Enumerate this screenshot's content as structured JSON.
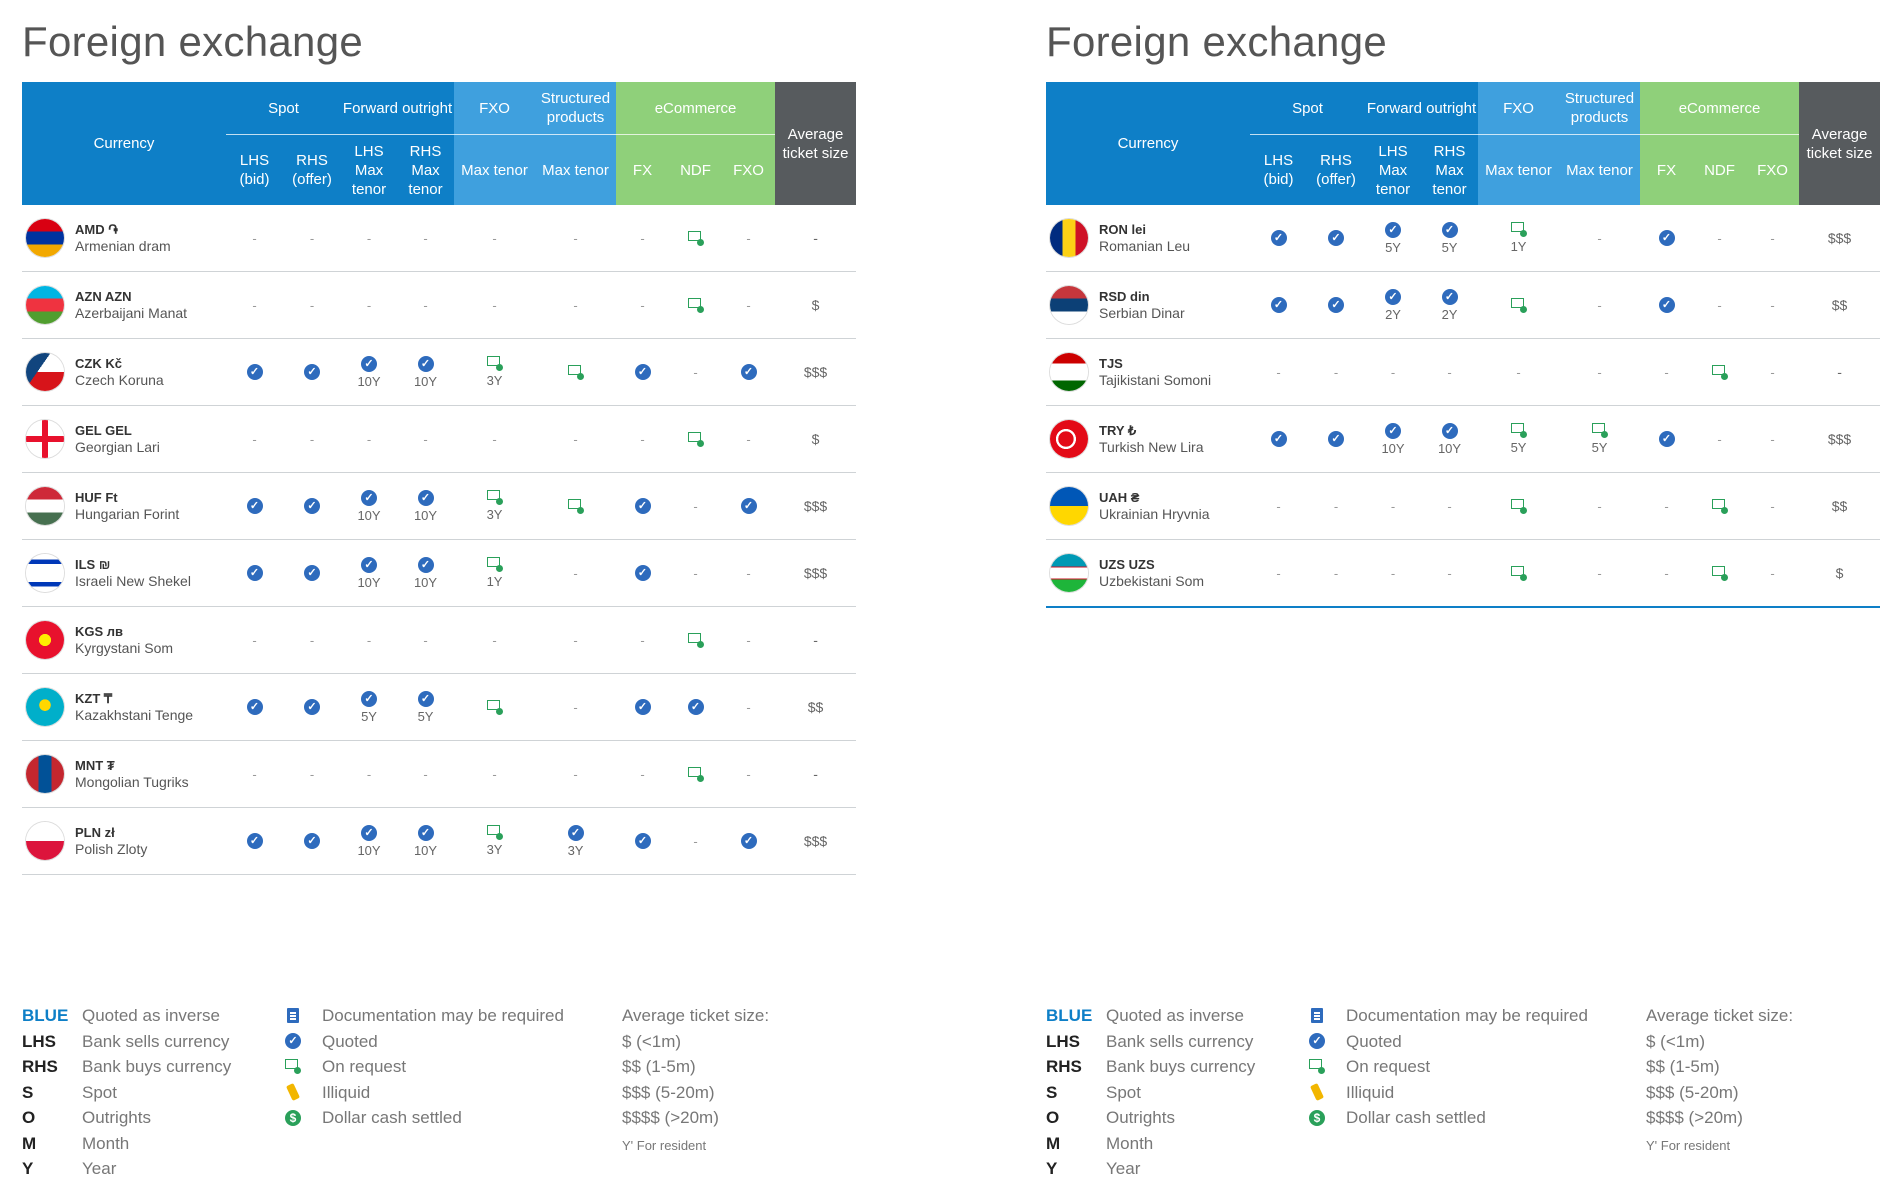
{
  "colors": {
    "brand_blue": "#0e7fc7",
    "fxo_blue": "#3fa0de",
    "ecommerce_green": "#8fd07a",
    "avg_grey": "#575b5e",
    "check_blue": "#2e6bbd",
    "request_green": "#2aa05a"
  },
  "header": {
    "currency": "Currency",
    "spot": "Spot",
    "forward_outright": "Forward outright",
    "fxo": "FXO",
    "structured_products": "Structured products",
    "ecommerce": "eCommerce",
    "average_ticket_size": "Average ticket size",
    "lhs_bid": "LHS (bid)",
    "rhs_offer": "RHS (offer)",
    "lhs_max_tenor": "LHS Max tenor",
    "rhs_max_tenor": "RHS Max tenor",
    "max_tenor": "Max tenor",
    "fx": "FX",
    "ndf": "NDF",
    "fxo_sub": "FXO"
  },
  "icons": {
    "quoted": "check-circle-icon",
    "on_request": "screen-request-icon",
    "documentation": "document-icon",
    "illiquid": "illiquid-icon",
    "dollar_cash": "dollar-coin-icon"
  },
  "panels": [
    {
      "title": "Foreign exchange",
      "rows": [
        {
          "code": "AMD ֏",
          "name": "Armenian dram",
          "flag": "am",
          "cells": [
            [
              "d"
            ],
            [
              "d"
            ],
            [
              "d"
            ],
            [
              "d"
            ],
            [
              "d"
            ],
            [
              "d"
            ],
            [
              "d"
            ],
            [
              "r"
            ],
            [
              "d"
            ]
          ],
          "avg": "-"
        },
        {
          "code": "AZN AZN",
          "name": "Azerbaijani Manat",
          "flag": "az",
          "cells": [
            [
              "d"
            ],
            [
              "d"
            ],
            [
              "d"
            ],
            [
              "d"
            ],
            [
              "d"
            ],
            [
              "d"
            ],
            [
              "d"
            ],
            [
              "r"
            ],
            [
              "d"
            ]
          ],
          "avg": "$"
        },
        {
          "code": "CZK Kč",
          "name": "Czech Koruna",
          "flag": "cz",
          "cells": [
            [
              "c"
            ],
            [
              "c"
            ],
            [
              "c",
              "10Y"
            ],
            [
              "c",
              "10Y"
            ],
            [
              "r",
              "3Y"
            ],
            [
              "r"
            ],
            [
              "c"
            ],
            [
              "d"
            ],
            [
              "c"
            ]
          ],
          "avg": "$$$"
        },
        {
          "code": "GEL GEL",
          "name": "Georgian Lari",
          "flag": "ge",
          "cells": [
            [
              "d"
            ],
            [
              "d"
            ],
            [
              "d"
            ],
            [
              "d"
            ],
            [
              "d"
            ],
            [
              "d"
            ],
            [
              "d"
            ],
            [
              "r"
            ],
            [
              "d"
            ]
          ],
          "avg": "$"
        },
        {
          "code": "HUF Ft",
          "name": "Hungarian Forint",
          "flag": "hu",
          "cells": [
            [
              "c"
            ],
            [
              "c"
            ],
            [
              "c",
              "10Y"
            ],
            [
              "c",
              "10Y"
            ],
            [
              "r",
              "3Y"
            ],
            [
              "r"
            ],
            [
              "c"
            ],
            [
              "d"
            ],
            [
              "c"
            ]
          ],
          "avg": "$$$"
        },
        {
          "code": "ILS ₪",
          "name": "Israeli New Shekel",
          "flag": "il",
          "cells": [
            [
              "c"
            ],
            [
              "c"
            ],
            [
              "c",
              "10Y"
            ],
            [
              "c",
              "10Y"
            ],
            [
              "r",
              "1Y"
            ],
            [
              "d"
            ],
            [
              "c"
            ],
            [
              "d"
            ],
            [
              "d"
            ]
          ],
          "avg": "$$$"
        },
        {
          "code": "KGS лв",
          "name": "Kyrgystani Som",
          "flag": "kg",
          "cells": [
            [
              "d"
            ],
            [
              "d"
            ],
            [
              "d"
            ],
            [
              "d"
            ],
            [
              "d"
            ],
            [
              "d"
            ],
            [
              "d"
            ],
            [
              "r"
            ],
            [
              "d"
            ]
          ],
          "avg": "-"
        },
        {
          "code": "KZT ₸",
          "name": "Kazakhstani Tenge",
          "flag": "kz",
          "cells": [
            [
              "c"
            ],
            [
              "c"
            ],
            [
              "c",
              "5Y"
            ],
            [
              "c",
              "5Y"
            ],
            [
              "r"
            ],
            [
              "d"
            ],
            [
              "c"
            ],
            [
              "c"
            ],
            [
              "d"
            ]
          ],
          "avg": "$$"
        },
        {
          "code": "MNT ₮",
          "name": "Mongolian Tugriks",
          "flag": "mn",
          "cells": [
            [
              "d"
            ],
            [
              "d"
            ],
            [
              "d"
            ],
            [
              "d"
            ],
            [
              "d"
            ],
            [
              "d"
            ],
            [
              "d"
            ],
            [
              "r"
            ],
            [
              "d"
            ]
          ],
          "avg": "-"
        },
        {
          "code": "PLN zł",
          "name": "Polish Zloty",
          "flag": "pl",
          "cells": [
            [
              "c"
            ],
            [
              "c"
            ],
            [
              "c",
              "10Y"
            ],
            [
              "c",
              "10Y"
            ],
            [
              "r",
              "3Y"
            ],
            [
              "c",
              "3Y"
            ],
            [
              "c"
            ],
            [
              "d"
            ],
            [
              "c"
            ]
          ],
          "avg": "$$$"
        }
      ]
    },
    {
      "title": "Foreign exchange",
      "rows": [
        {
          "code": "RON lei",
          "name": "Romanian Leu",
          "flag": "ro",
          "cells": [
            [
              "c"
            ],
            [
              "c"
            ],
            [
              "c",
              "5Y"
            ],
            [
              "c",
              "5Y"
            ],
            [
              "r",
              "1Y"
            ],
            [
              "d"
            ],
            [
              "c"
            ],
            [
              "d"
            ],
            [
              "d"
            ]
          ],
          "avg": "$$$"
        },
        {
          "code": "RSD din",
          "name": "Serbian Dinar",
          "flag": "rs",
          "cells": [
            [
              "c"
            ],
            [
              "c"
            ],
            [
              "c",
              "2Y"
            ],
            [
              "c",
              "2Y"
            ],
            [
              "r"
            ],
            [
              "d"
            ],
            [
              "c"
            ],
            [
              "d"
            ],
            [
              "d"
            ]
          ],
          "avg": "$$"
        },
        {
          "code": "TJS",
          "name": "Tajikistani Somoni",
          "flag": "tj",
          "cells": [
            [
              "d"
            ],
            [
              "d"
            ],
            [
              "d"
            ],
            [
              "d"
            ],
            [
              "d"
            ],
            [
              "d"
            ],
            [
              "d"
            ],
            [
              "r"
            ],
            [
              "d"
            ]
          ],
          "avg": "-"
        },
        {
          "code": "TRY ₺",
          "name": "Turkish New Lira",
          "flag": "tr",
          "cells": [
            [
              "c"
            ],
            [
              "c"
            ],
            [
              "c",
              "10Y"
            ],
            [
              "c",
              "10Y"
            ],
            [
              "r",
              "5Y"
            ],
            [
              "r",
              "5Y"
            ],
            [
              "c"
            ],
            [
              "d"
            ],
            [
              "d"
            ]
          ],
          "avg": "$$$"
        },
        {
          "code": "UAH ₴",
          "name": "Ukrainian Hryvnia",
          "flag": "ua",
          "cells": [
            [
              "d"
            ],
            [
              "d"
            ],
            [
              "d"
            ],
            [
              "d"
            ],
            [
              "r"
            ],
            [
              "d"
            ],
            [
              "d"
            ],
            [
              "r"
            ],
            [
              "d"
            ]
          ],
          "avg": "$$"
        },
        {
          "code": "UZS UZS",
          "name": "Uzbekistani Som",
          "flag": "uz",
          "cells": [
            [
              "d"
            ],
            [
              "d"
            ],
            [
              "d"
            ],
            [
              "d"
            ],
            [
              "r"
            ],
            [
              "d"
            ],
            [
              "d"
            ],
            [
              "r"
            ],
            [
              "d"
            ]
          ],
          "avg": "$"
        }
      ]
    }
  ],
  "legend": {
    "abbrev": [
      {
        "key": "BLUE",
        "val": "Quoted as inverse"
      },
      {
        "key": "LHS",
        "val": "Bank sells currency"
      },
      {
        "key": "RHS",
        "val": "Bank buys currency"
      },
      {
        "key": "S",
        "val": "Spot"
      },
      {
        "key": "O",
        "val": "Outrights"
      },
      {
        "key": "M",
        "val": "Month"
      },
      {
        "key": "Y",
        "val": "Year"
      }
    ],
    "icons": [
      {
        "icon": "document-icon",
        "val": "Documentation may be required"
      },
      {
        "icon": "check-circle-icon",
        "val": "Quoted"
      },
      {
        "icon": "screen-request-icon",
        "val": "On request"
      },
      {
        "icon": "illiquid-icon",
        "val": "Illiquid"
      },
      {
        "icon": "dollar-coin-icon",
        "val": "Dollar cash settled"
      }
    ],
    "ticket_title": "Average ticket size:",
    "ticket": [
      "$ (<1m)",
      "$$ (1-5m)",
      "$$$ (5-20m)",
      "$$$$ (>20m)"
    ],
    "footnote": "Y' For resident"
  }
}
